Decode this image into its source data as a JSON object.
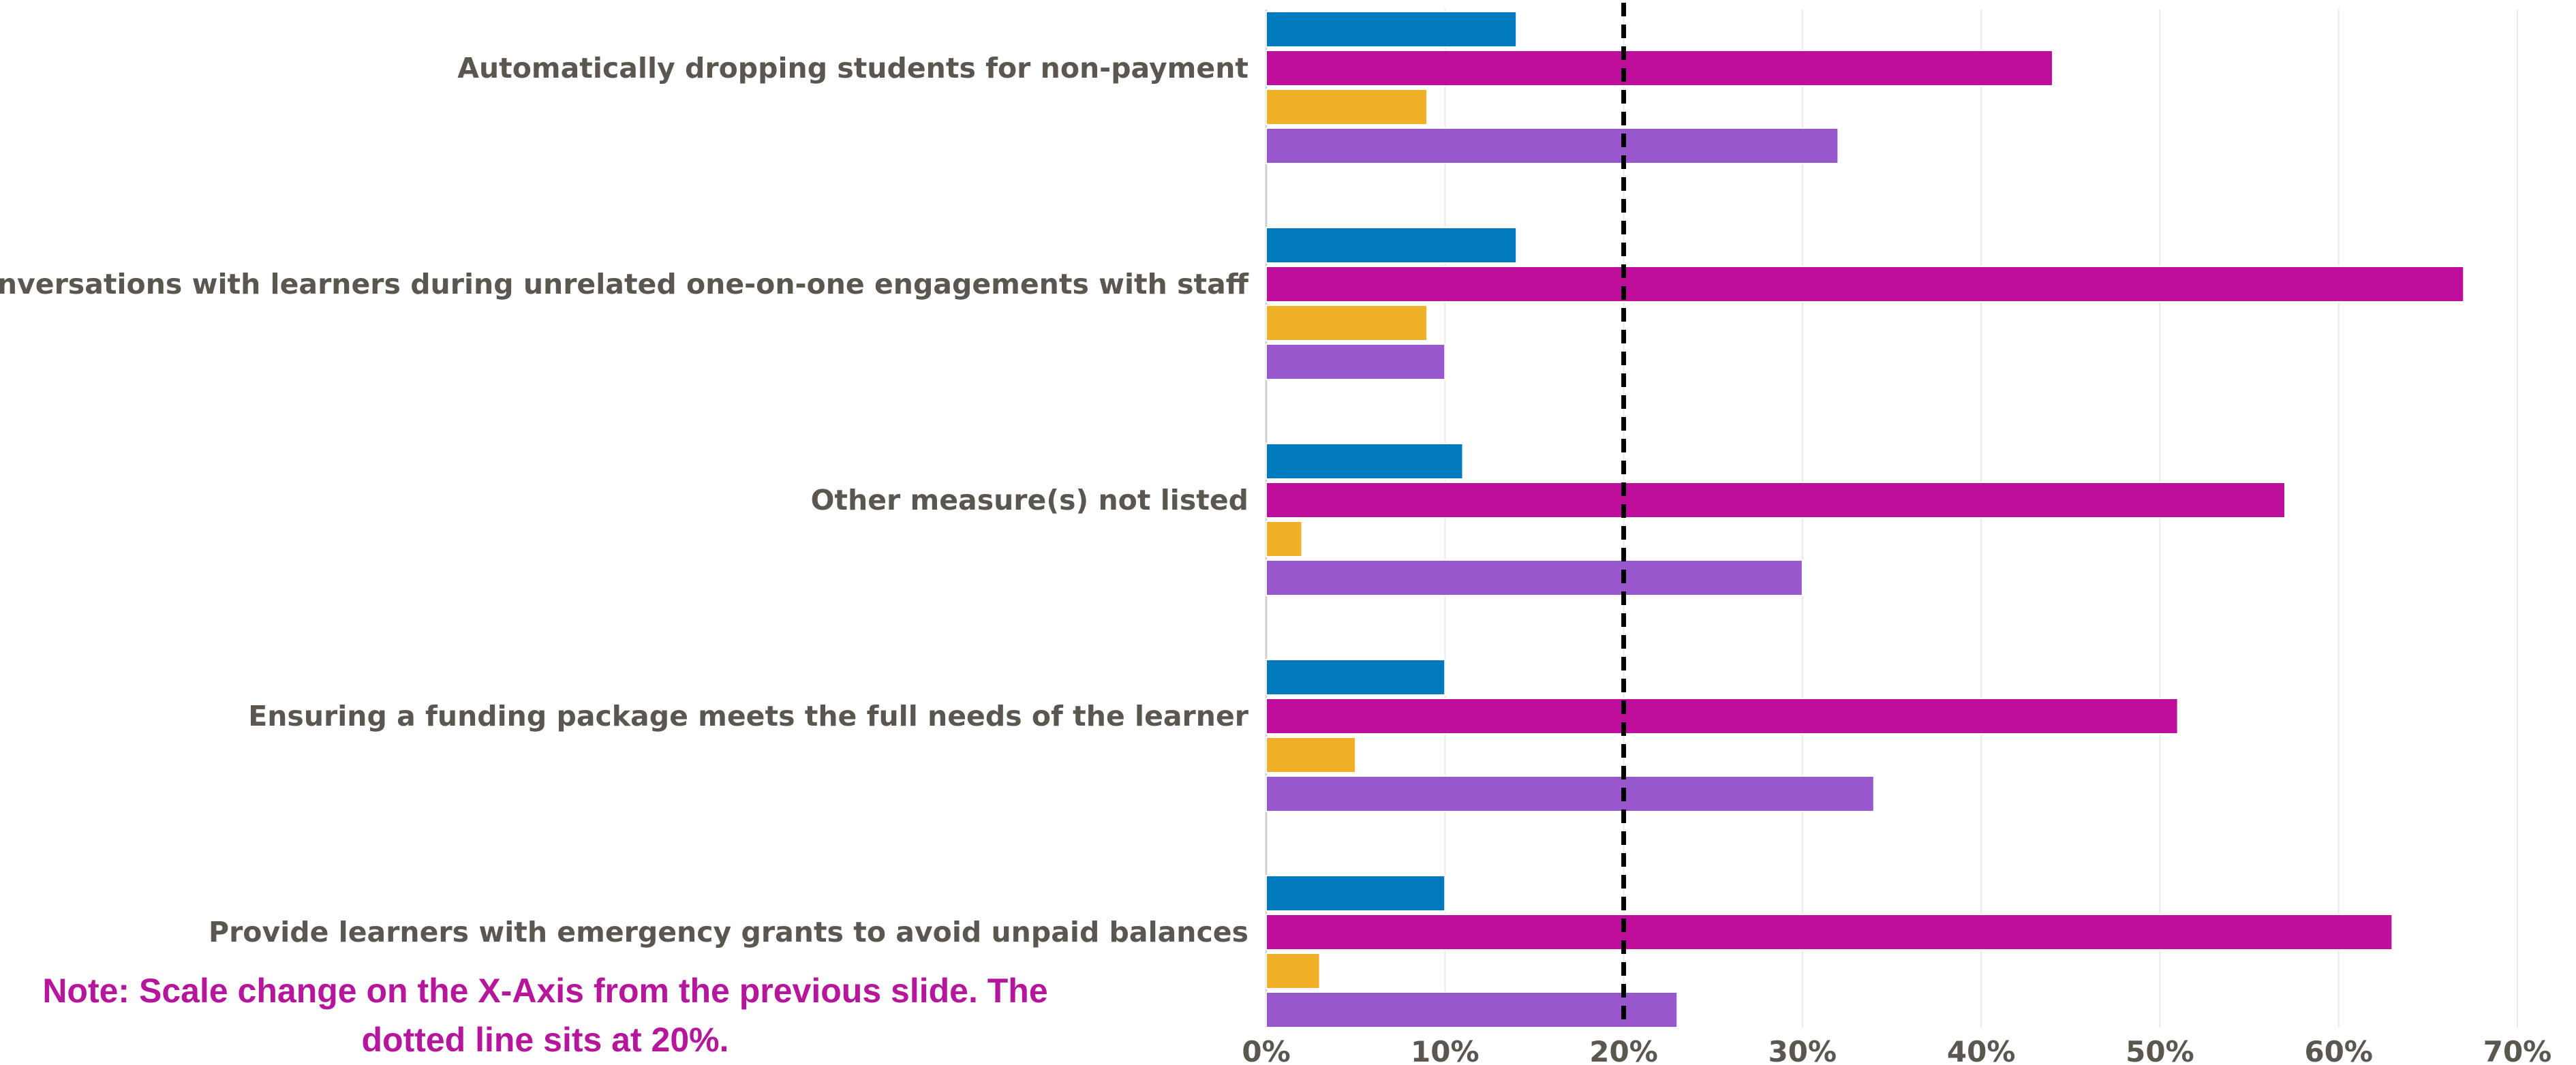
{
  "chart_data": {
    "type": "bar",
    "orientation": "horizontal",
    "categories": [
      "Automatically dropping students for non-payment",
      "Conversations with learners during unrelated one-on-one engagements with staff",
      "Other measure(s) not listed",
      "Ensuring a funding package meets the full needs of the learner",
      "Provide learners with emergency grants to avoid unpaid balances"
    ],
    "series": [
      {
        "color": "#0179bd",
        "values": [
          14,
          14,
          11,
          10,
          10
        ]
      },
      {
        "color": "#bd0f9b",
        "values": [
          44,
          67,
          57,
          51,
          63
        ]
      },
      {
        "color": "#f0b128",
        "values": [
          9,
          9,
          2,
          5,
          3
        ]
      },
      {
        "color": "#9857cc",
        "values": [
          32,
          10,
          30,
          34,
          23
        ]
      }
    ],
    "x_ticks": [
      "0%",
      "10%",
      "20%",
      "30%",
      "40%",
      "50%",
      "60%",
      "70%"
    ],
    "xlim": [
      0,
      70
    ],
    "reference_line": {
      "value": 20,
      "style": "dashed",
      "color": "#000000"
    },
    "grid": "vertical",
    "legend": "none",
    "title": "",
    "xlabel": "",
    "ylabel": ""
  },
  "note": {
    "line1": "Note: Scale change on the X-Axis from the previous slide. The",
    "line2": "dotted line sits at 20%."
  }
}
